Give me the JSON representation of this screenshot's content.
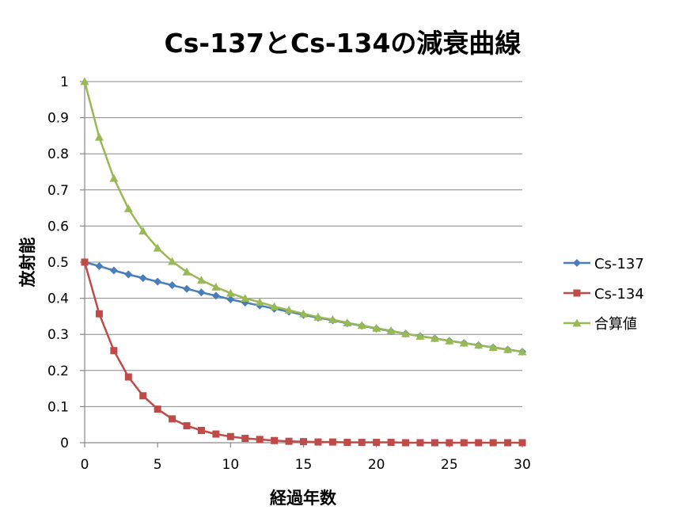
{
  "chart_data": {
    "type": "line",
    "title": "Cs-137とCs-134の減衰曲線",
    "xlabel": "経過年数",
    "ylabel": "放射能",
    "xlim": [
      0,
      30
    ],
    "ylim": [
      0,
      1
    ],
    "x_ticks": [
      "0",
      "5",
      "10",
      "15",
      "20",
      "25",
      "30"
    ],
    "y_ticks": [
      "0",
      "0.1",
      "0.2",
      "0.3",
      "0.4",
      "0.5",
      "0.6",
      "0.7",
      "0.8",
      "0.9",
      "1"
    ],
    "grid": "horizontal",
    "legend_position": "right",
    "x": [
      0,
      1,
      2,
      3,
      4,
      5,
      6,
      7,
      8,
      9,
      10,
      11,
      12,
      13,
      14,
      15,
      16,
      17,
      18,
      19,
      20,
      21,
      22,
      23,
      24,
      25,
      26,
      27,
      28,
      29,
      30
    ],
    "series": [
      {
        "name": "Cs-137",
        "color": "#4a7ebb",
        "marker": "diamond",
        "values": [
          0.5,
          0.489,
          0.477,
          0.466,
          0.456,
          0.446,
          0.436,
          0.426,
          0.416,
          0.407,
          0.397,
          0.388,
          0.38,
          0.371,
          0.363,
          0.354,
          0.346,
          0.339,
          0.331,
          0.324,
          0.316,
          0.309,
          0.302,
          0.295,
          0.289,
          0.282,
          0.276,
          0.27,
          0.264,
          0.258,
          0.252
        ]
      },
      {
        "name": "Cs-134",
        "color": "#be4b48",
        "marker": "square",
        "values": [
          0.5,
          0.357,
          0.255,
          0.182,
          0.13,
          0.093,
          0.066,
          0.047,
          0.034,
          0.024,
          0.017,
          0.012,
          0.009,
          0.006,
          0.004,
          0.003,
          0.002,
          0.002,
          0.001,
          0.001,
          0.001,
          0.001,
          0,
          0,
          0,
          0,
          0,
          0,
          0,
          0,
          0
        ]
      },
      {
        "name": "合算値",
        "color": "#98b954",
        "marker": "triangle",
        "values": [
          1.0,
          0.846,
          0.732,
          0.648,
          0.586,
          0.539,
          0.502,
          0.473,
          0.45,
          0.431,
          0.414,
          0.4,
          0.389,
          0.377,
          0.367,
          0.357,
          0.348,
          0.341,
          0.332,
          0.325,
          0.317,
          0.31,
          0.302,
          0.295,
          0.289,
          0.282,
          0.276,
          0.27,
          0.264,
          0.258,
          0.252
        ]
      }
    ]
  }
}
